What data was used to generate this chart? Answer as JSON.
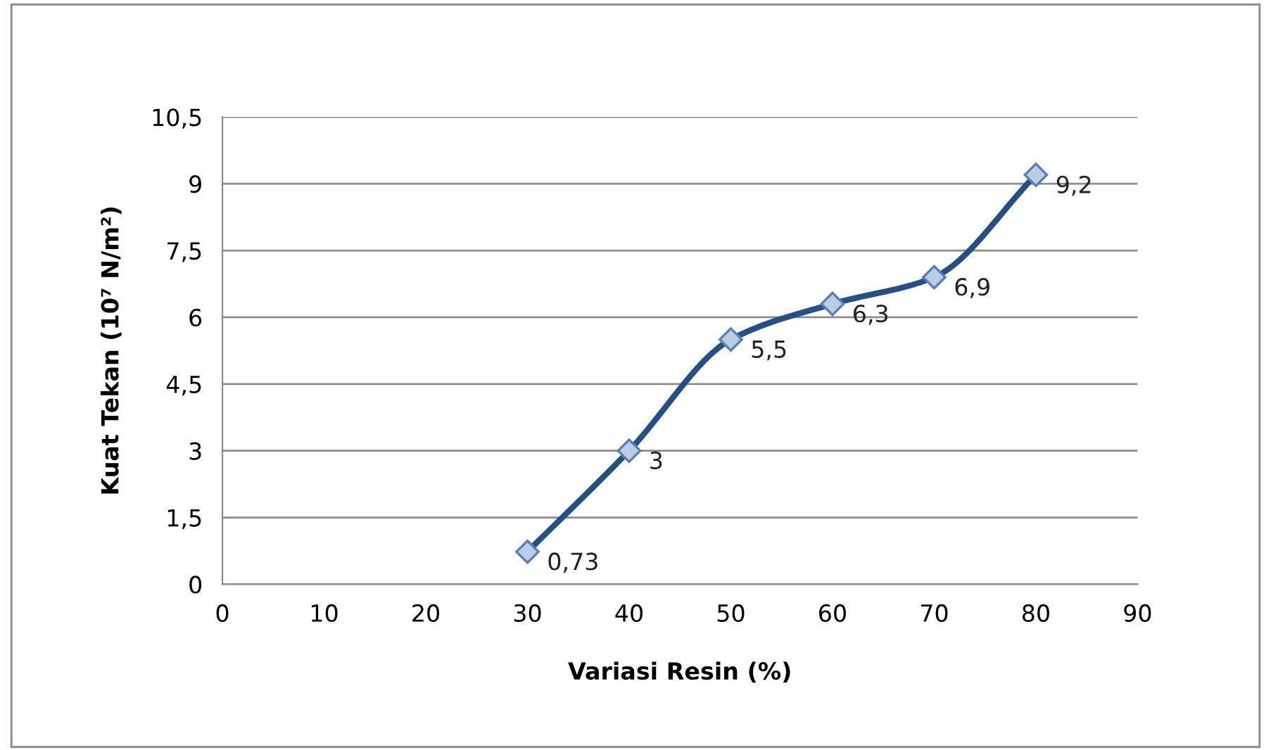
{
  "chart_data": {
    "type": "line",
    "xlabel": "Variasi Resin (%)",
    "ylabel": "Kuat Tekan (10⁷ N/m²)",
    "x": [
      30,
      40,
      50,
      60,
      70,
      80
    ],
    "series": [
      {
        "color": "#264f84",
        "values": [
          0.73,
          3,
          5.5,
          6.3,
          6.9,
          9.2
        ],
        "value_labels": [
          "0,73",
          "3",
          "5,5",
          "6,3",
          "6,9",
          "9,2"
        ]
      }
    ],
    "xlim": [
      0,
      90
    ],
    "xticks": [
      0,
      10,
      20,
      30,
      40,
      50,
      60,
      70,
      80,
      90
    ],
    "ylim": [
      0,
      10.5
    ],
    "yticks": [
      0,
      {
        "value": 1.5,
        "label": "1,5"
      },
      3,
      {
        "value": 4.5,
        "label": "4,5"
      },
      6,
      {
        "value": 7.5,
        "label": "7,5"
      },
      9,
      {
        "value": 10.5,
        "label": "10,5"
      }
    ],
    "grid": "y",
    "marker": "diamond",
    "line_style": "solid",
    "legend": false
  }
}
